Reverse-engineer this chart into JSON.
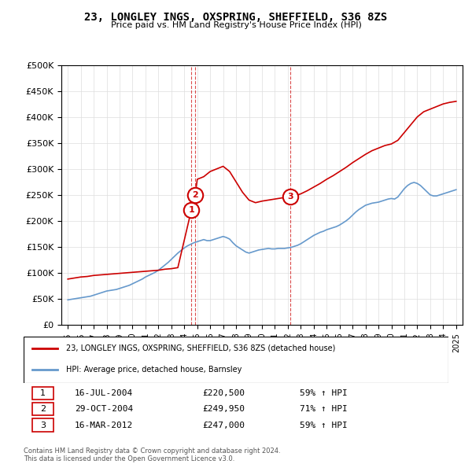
{
  "title": "23, LONGLEY INGS, OXSPRING, SHEFFIELD, S36 8ZS",
  "subtitle": "Price paid vs. HM Land Registry's House Price Index (HPI)",
  "legend_house": "23, LONGLEY INGS, OXSPRING, SHEFFIELD, S36 8ZS (detached house)",
  "legend_hpi": "HPI: Average price, detached house, Barnsley",
  "footer1": "Contains HM Land Registry data © Crown copyright and database right 2024.",
  "footer2": "This data is licensed under the Open Government Licence v3.0.",
  "sales": [
    {
      "num": 1,
      "date": "16-JUL-2004",
      "price": 220500,
      "pct": "59% ↑ HPI",
      "year": 2004.54
    },
    {
      "num": 2,
      "date": "29-OCT-2004",
      "price": 249950,
      "pct": "71% ↑ HPI",
      "year": 2004.83
    },
    {
      "num": 3,
      "date": "16-MAR-2012",
      "price": 247000,
      "pct": "59% ↑ HPI",
      "year": 2012.21
    }
  ],
  "house_color": "#cc0000",
  "hpi_color": "#6699cc",
  "sale_marker_color": "#cc0000",
  "dashed_line_color": "#cc0000",
  "ylim": [
    0,
    500000
  ],
  "yticks": [
    0,
    50000,
    100000,
    150000,
    200000,
    250000,
    300000,
    350000,
    400000,
    450000,
    500000
  ],
  "xlim_start": 1994.5,
  "xlim_end": 2025.5,
  "hpi_x": [
    1995,
    1995.25,
    1995.5,
    1995.75,
    1996,
    1996.25,
    1996.5,
    1996.75,
    1997,
    1997.25,
    1997.5,
    1997.75,
    1998,
    1998.25,
    1998.5,
    1998.75,
    1999,
    1999.25,
    1999.5,
    1999.75,
    2000,
    2000.25,
    2000.5,
    2000.75,
    2001,
    2001.25,
    2001.5,
    2001.75,
    2002,
    2002.25,
    2002.5,
    2002.75,
    2003,
    2003.25,
    2003.5,
    2003.75,
    2004,
    2004.25,
    2004.5,
    2004.75,
    2005,
    2005.25,
    2005.5,
    2005.75,
    2006,
    2006.25,
    2006.5,
    2006.75,
    2007,
    2007.25,
    2007.5,
    2007.75,
    2008,
    2008.25,
    2008.5,
    2008.75,
    2009,
    2009.25,
    2009.5,
    2009.75,
    2010,
    2010.25,
    2010.5,
    2010.75,
    2011,
    2011.25,
    2011.5,
    2011.75,
    2012,
    2012.25,
    2012.5,
    2012.75,
    2013,
    2013.25,
    2013.5,
    2013.75,
    2014,
    2014.25,
    2014.5,
    2014.75,
    2015,
    2015.25,
    2015.5,
    2015.75,
    2016,
    2016.25,
    2016.5,
    2016.75,
    2017,
    2017.25,
    2017.5,
    2017.75,
    2018,
    2018.25,
    2018.5,
    2018.75,
    2019,
    2019.25,
    2019.5,
    2019.75,
    2020,
    2020.25,
    2020.5,
    2020.75,
    2021,
    2021.25,
    2021.5,
    2021.75,
    2022,
    2022.25,
    2022.5,
    2022.75,
    2023,
    2023.25,
    2023.5,
    2023.75,
    2024,
    2024.25,
    2024.5,
    2024.75,
    2025
  ],
  "hpi_y": [
    48000,
    49000,
    50000,
    51000,
    52000,
    53000,
    54000,
    55000,
    57000,
    59000,
    61000,
    63000,
    65000,
    66000,
    67000,
    68000,
    70000,
    72000,
    74000,
    76000,
    79000,
    82000,
    85000,
    88000,
    92000,
    95000,
    98000,
    101000,
    105000,
    110000,
    115000,
    120000,
    126000,
    132000,
    138000,
    143000,
    148000,
    152000,
    155000,
    158000,
    160000,
    162000,
    164000,
    162000,
    162000,
    164000,
    166000,
    168000,
    170000,
    168000,
    165000,
    158000,
    152000,
    148000,
    144000,
    140000,
    138000,
    140000,
    142000,
    144000,
    145000,
    146000,
    147000,
    146000,
    146000,
    147000,
    147000,
    147000,
    148000,
    149000,
    151000,
    153000,
    156000,
    160000,
    164000,
    168000,
    172000,
    175000,
    178000,
    180000,
    183000,
    185000,
    187000,
    189000,
    192000,
    196000,
    200000,
    205000,
    211000,
    217000,
    222000,
    226000,
    230000,
    232000,
    234000,
    235000,
    236000,
    238000,
    240000,
    242000,
    243000,
    242000,
    246000,
    254000,
    262000,
    268000,
    272000,
    274000,
    272000,
    268000,
    262000,
    256000,
    250000,
    248000,
    248000,
    250000,
    252000,
    254000,
    256000,
    258000,
    260000
  ],
  "house_x": [
    1995,
    1995.5,
    1996,
    1996.5,
    1997,
    1997.5,
    1998,
    1998.5,
    1999,
    1999.5,
    2000,
    2000.5,
    2001,
    2001.5,
    2002,
    2002.5,
    2003,
    2003.5,
    2004.54,
    2004.83,
    2005,
    2005.5,
    2006,
    2006.5,
    2007,
    2007.5,
    2008,
    2008.5,
    2009,
    2009.5,
    2010,
    2010.5,
    2011,
    2011.5,
    2012.21,
    2012.5,
    2013,
    2013.5,
    2014,
    2014.5,
    2015,
    2015.5,
    2016,
    2016.5,
    2017,
    2017.5,
    2018,
    2018.5,
    2019,
    2019.5,
    2020,
    2020.5,
    2021,
    2021.5,
    2022,
    2022.5,
    2023,
    2023.5,
    2024,
    2024.5,
    2025
  ],
  "house_y": [
    88000,
    90000,
    92000,
    93000,
    95000,
    96000,
    97000,
    98000,
    99000,
    100000,
    101000,
    102000,
    103000,
    104000,
    105000,
    107000,
    108000,
    110000,
    220500,
    249950,
    280000,
    285000,
    295000,
    300000,
    305000,
    295000,
    275000,
    255000,
    240000,
    235000,
    238000,
    240000,
    242000,
    244000,
    247000,
    248000,
    252000,
    258000,
    265000,
    272000,
    280000,
    287000,
    295000,
    303000,
    312000,
    320000,
    328000,
    335000,
    340000,
    345000,
    348000,
    355000,
    370000,
    385000,
    400000,
    410000,
    415000,
    420000,
    425000,
    428000,
    430000
  ]
}
